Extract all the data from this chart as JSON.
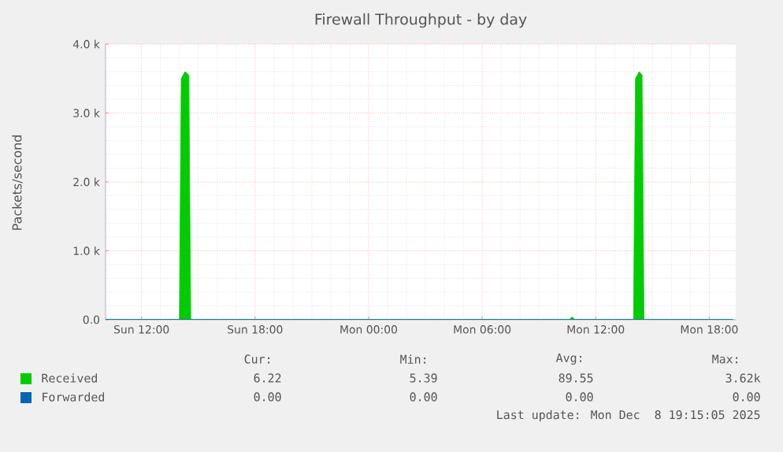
{
  "chart_data": {
    "type": "area",
    "title": "Firewall Throughput - by day",
    "ylabel": "Packets/second",
    "xlim": [
      "2025-12-07T10:06",
      "2025-12-08T19:24"
    ],
    "ylim": [
      0,
      4000
    ],
    "xticks": [
      {
        "value": "2025-12-07T12:00",
        "label": "Sun 12:00"
      },
      {
        "value": "2025-12-07T18:00",
        "label": "Sun 18:00"
      },
      {
        "value": "2025-12-08T00:00",
        "label": "Mon 00:00"
      },
      {
        "value": "2025-12-08T06:00",
        "label": "Mon 06:00"
      },
      {
        "value": "2025-12-08T12:00",
        "label": "Mon 12:00"
      },
      {
        "value": "2025-12-08T18:00",
        "label": "Mon 18:00"
      }
    ],
    "yticks": [
      {
        "value": 0,
        "label": "0.0"
      },
      {
        "value": 1000,
        "label": "1.0 k"
      },
      {
        "value": 2000,
        "label": "2.0 k"
      },
      {
        "value": 3000,
        "label": "3.0 k"
      },
      {
        "value": 4000,
        "label": "4.0 k"
      }
    ],
    "grid": true,
    "legend": "bottom",
    "series": [
      {
        "name": "Received",
        "color": "#00cc00",
        "x": [
          "2025-12-07T10:06",
          "2025-12-07T14:00",
          "2025-12-07T14:06",
          "2025-12-07T14:18",
          "2025-12-07T14:30",
          "2025-12-07T14:36",
          "2025-12-08T10:36",
          "2025-12-08T10:45",
          "2025-12-08T10:54",
          "2025-12-08T14:00",
          "2025-12-08T14:06",
          "2025-12-08T14:18",
          "2025-12-08T14:27",
          "2025-12-08T14:33",
          "2025-12-08T19:15"
        ],
        "values": [
          0,
          0,
          3500,
          3600,
          3550,
          0,
          0,
          40,
          0,
          0,
          3500,
          3600,
          3550,
          0,
          0
        ]
      },
      {
        "name": "Forwarded",
        "color": "#0066b3",
        "type": "line",
        "x": [
          "2025-12-07T10:06",
          "2025-12-08T19:15"
        ],
        "values": [
          0,
          0
        ]
      }
    ],
    "annotations": [
      "Cur:",
      "Min:",
      "Avg:",
      "Max:",
      "6.22",
      "5.39",
      "89.55",
      "3.62k",
      "0.00",
      "0.00",
      "0.00",
      "0.00",
      "Last update: Mon Dec  8 19:15:05 2025"
    ]
  }
}
